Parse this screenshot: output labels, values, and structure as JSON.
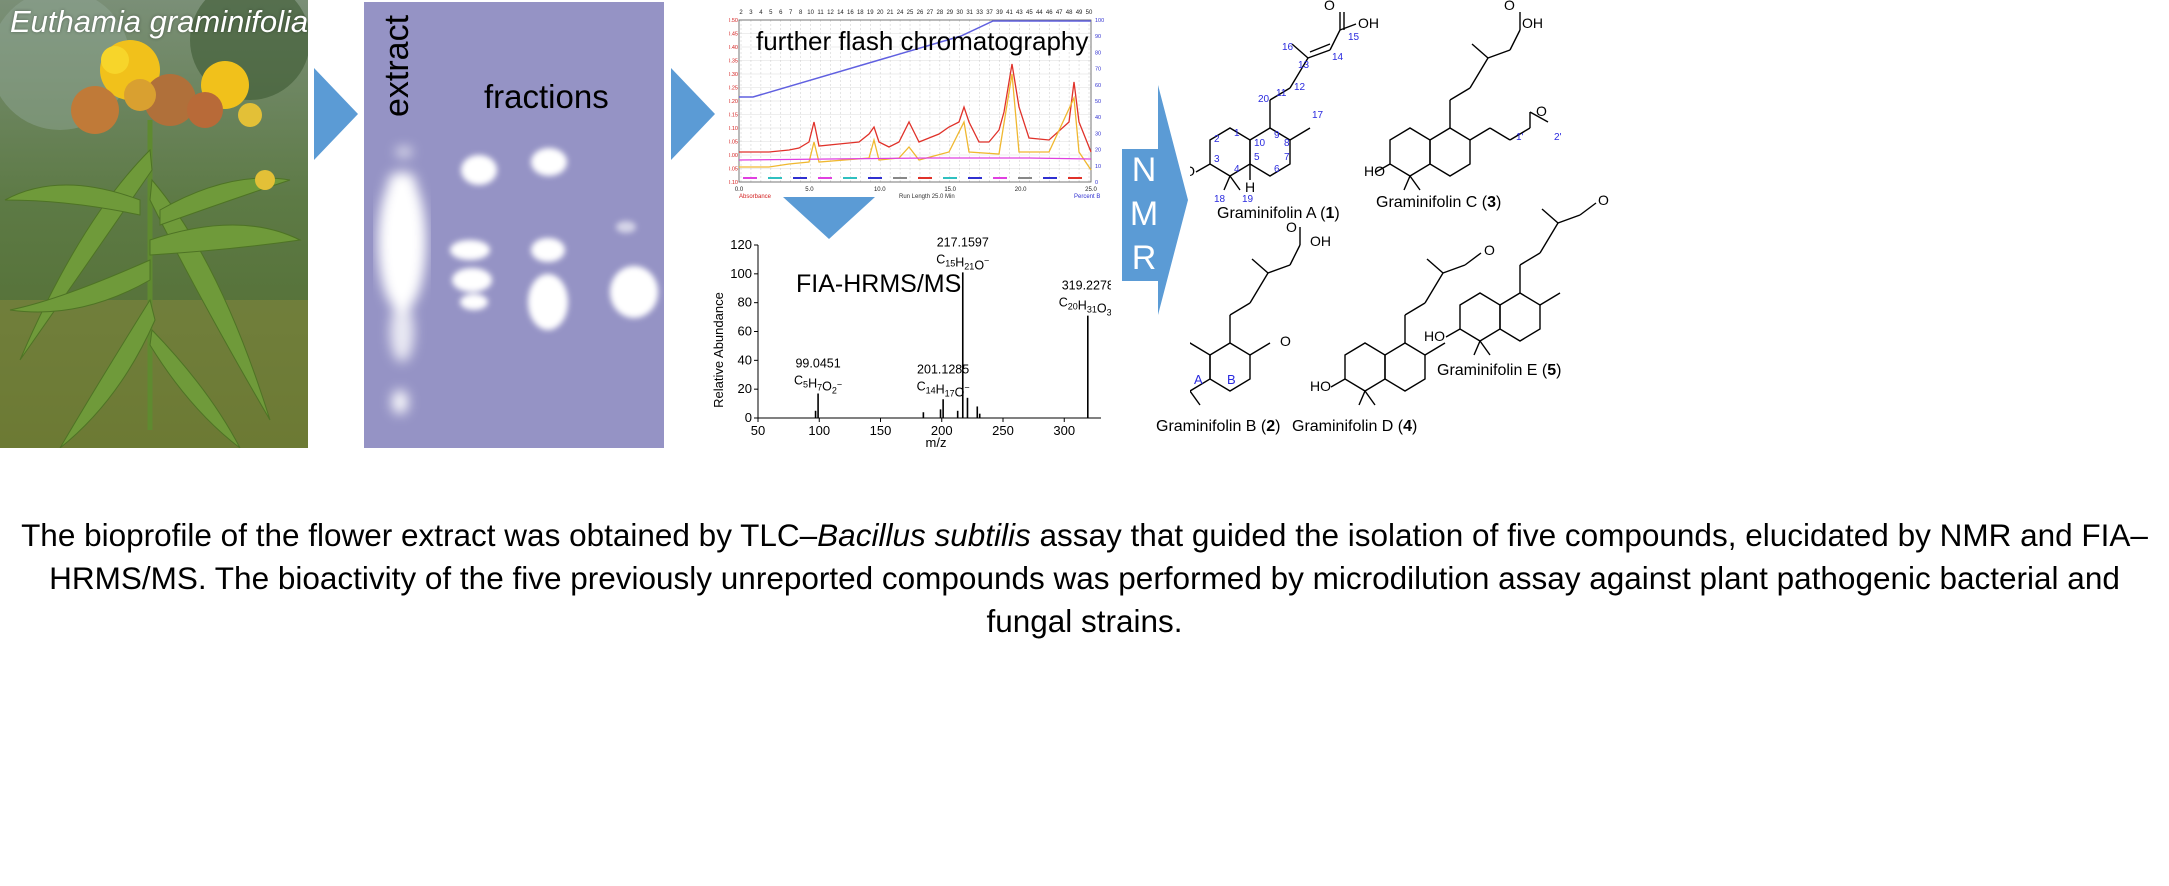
{
  "photo": {
    "species": "Euthamia graminifolia"
  },
  "tlc": {
    "extract_label": "extract",
    "fractions_label": "fractions"
  },
  "flash": {
    "title": "further flash chromatography",
    "x_axis_label": "Run Length 25.0 Min",
    "left_axis_label": "Absorbance",
    "right_axis_label": "Percent B",
    "x_ticks": [
      "0.0",
      "5.0",
      "10.0",
      "15.0",
      "20.0",
      "25.0"
    ],
    "left_ticks": [
      "0.50",
      "0.45",
      "0.40",
      "0.35",
      "0.30",
      "0.25",
      "0.20",
      "0.15",
      "0.10",
      "0.05",
      "0.00",
      "-0.05",
      "-0.10"
    ],
    "right_ticks": [
      "100",
      "90",
      "80",
      "70",
      "60",
      "50",
      "40",
      "30",
      "20",
      "10",
      "0"
    ],
    "fraction_numbers": [
      "2",
      "3",
      "4",
      "5",
      "6",
      "7",
      "8",
      "10",
      "11",
      "12",
      "14",
      "16",
      "18",
      "19",
      "20",
      "21",
      "24",
      "25",
      "26",
      "27",
      "28",
      "29",
      "30",
      "31",
      "33",
      "37",
      "39",
      "41",
      "43",
      "45",
      "44",
      "46",
      "47",
      "48",
      "49",
      "50"
    ]
  },
  "colors": {
    "panel_arrow": "#5b9bd5",
    "tlc_plate": "#8a87bf",
    "chrom_red": "#e0322a",
    "chrom_orange": "#f0b830",
    "chrom_magenta": "#e040e0",
    "chrom_blue": "#6060e0",
    "atom_number_blue": "#2a2adf"
  },
  "nmr_arrow": {
    "letters": [
      "N",
      "M",
      "R"
    ]
  },
  "chart_data": {
    "type": "bar",
    "title": "FIA-HRMS/MS",
    "xlabel": "m/z",
    "ylabel": "Relative Abundance",
    "xlim": [
      50,
      330
    ],
    "ylim": [
      0,
      120
    ],
    "x_ticks": [
      "50",
      "100",
      "150",
      "200",
      "250",
      "300"
    ],
    "y_ticks": [
      "0",
      "20",
      "40",
      "60",
      "80",
      "100",
      "120"
    ],
    "peaks": [
      {
        "mz": 97,
        "intensity": 5
      },
      {
        "mz": 99.0451,
        "intensity": 17
      },
      {
        "mz": 185,
        "intensity": 4
      },
      {
        "mz": 199,
        "intensity": 6
      },
      {
        "mz": 201.1285,
        "intensity": 13
      },
      {
        "mz": 213,
        "intensity": 5
      },
      {
        "mz": 217.1597,
        "intensity": 101
      },
      {
        "mz": 221,
        "intensity": 14
      },
      {
        "mz": 229,
        "intensity": 8
      },
      {
        "mz": 231,
        "intensity": 3
      },
      {
        "mz": 319.2278,
        "intensity": 71
      }
    ],
    "annotations": [
      {
        "mz": "99.0451",
        "formula_base": "C",
        "parts": [
          [
            "C",
            ""
          ],
          [
            "5",
            "sub"
          ],
          [
            "H",
            ""
          ],
          [
            "7",
            "sub"
          ],
          [
            "O",
            ""
          ],
          [
            "2",
            "sub"
          ],
          [
            "−",
            "sup"
          ]
        ],
        "x": 99.0451,
        "y": 17
      },
      {
        "mz": "201.1285",
        "parts": [
          [
            "C",
            ""
          ],
          [
            "14",
            "sub"
          ],
          [
            "H",
            ""
          ],
          [
            "17",
            "sub"
          ],
          [
            "O",
            ""
          ],
          [
            "−",
            "sup"
          ]
        ],
        "x": 201.1285,
        "y": 13
      },
      {
        "mz": "217.1597",
        "parts": [
          [
            "C",
            ""
          ],
          [
            "15",
            "sub"
          ],
          [
            "H",
            ""
          ],
          [
            "21",
            "sub"
          ],
          [
            "O",
            ""
          ],
          [
            "−",
            "sup"
          ]
        ],
        "x": 217.1597,
        "y": 101
      },
      {
        "mz": "319.2278",
        "parts": [
          [
            "C",
            ""
          ],
          [
            "20",
            "sub"
          ],
          [
            "H",
            ""
          ],
          [
            "31",
            "sub"
          ],
          [
            "O",
            ""
          ],
          [
            "3",
            "sub"
          ],
          [
            "−",
            "sup"
          ]
        ],
        "x": 319.2278,
        "y": 71
      }
    ]
  },
  "structures": {
    "compounds": [
      {
        "name": "Graminifolin A",
        "num": "1"
      },
      {
        "name": "Graminifolin C",
        "num": "3"
      },
      {
        "name": "Graminifolin B",
        "num": "2"
      },
      {
        "name": "Graminifolin D",
        "num": "4"
      },
      {
        "name": "Graminifolin E",
        "num": "5"
      }
    ],
    "atom_labels": {
      "OH": "OH",
      "O": "O",
      "HO": "HO",
      "H": "H",
      "ring_a": "A",
      "ring_b": "B",
      "numbers": [
        "1",
        "2",
        "3",
        "4",
        "5",
        "6",
        "7",
        "8",
        "9",
        "10",
        "11",
        "12",
        "13",
        "14",
        "15",
        "16",
        "17",
        "18",
        "19",
        "20",
        "1'",
        "2'"
      ]
    }
  },
  "caption": {
    "part1": "The bioprofile of the flower extract was obtained by TLC–",
    "italic": "Bacillus subtilis",
    "part2": " assay that guided the isolation of five compounds, elucidated by NMR and FIA–HRMS/MS. The bioactivity of the five previously unreported compounds was performed by microdilution assay against plant pathogenic bacterial and fungal strains."
  }
}
